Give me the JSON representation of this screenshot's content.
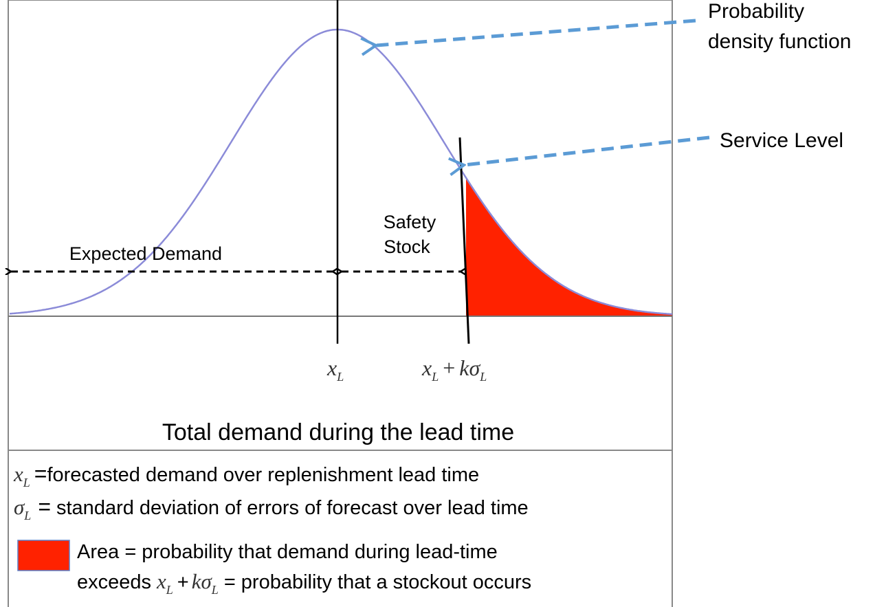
{
  "callouts": {
    "pdf": [
      "Probability",
      "density function"
    ],
    "service_level": "Service Level",
    "safety_stock": [
      "Safety",
      "Stock"
    ],
    "expected_demand": "Expected Demand"
  },
  "axis_labels": {
    "mean": {
      "symbol": "x",
      "subscript": "L"
    },
    "threshold": {
      "symbol": "x",
      "subscript": "L",
      "plus": "+",
      "k": "k",
      "sigma": "σ",
      "sigma_subscript": "L"
    }
  },
  "x_axis_title": "Total demand during the lead time",
  "legend": {
    "x_def": {
      "symbol": "x",
      "subscript": "L",
      "equals": "=",
      "text": "forecasted demand over replenishment lead time"
    },
    "sigma_def": {
      "symbol": "σ",
      "subscript": "L",
      "equals": "=",
      "text": "standard deviation of errors of forecast over lead time"
    },
    "area_def": {
      "line1": "Area = probability that demand during lead-time",
      "line2_start": "exceeds",
      "symbol": "x",
      "subscript": "L",
      "plus": "+",
      "k": "k",
      "sigma": "σ",
      "sigma_subscript": "L",
      "line2_end": "= probability that a stockout occurs"
    }
  }
}
